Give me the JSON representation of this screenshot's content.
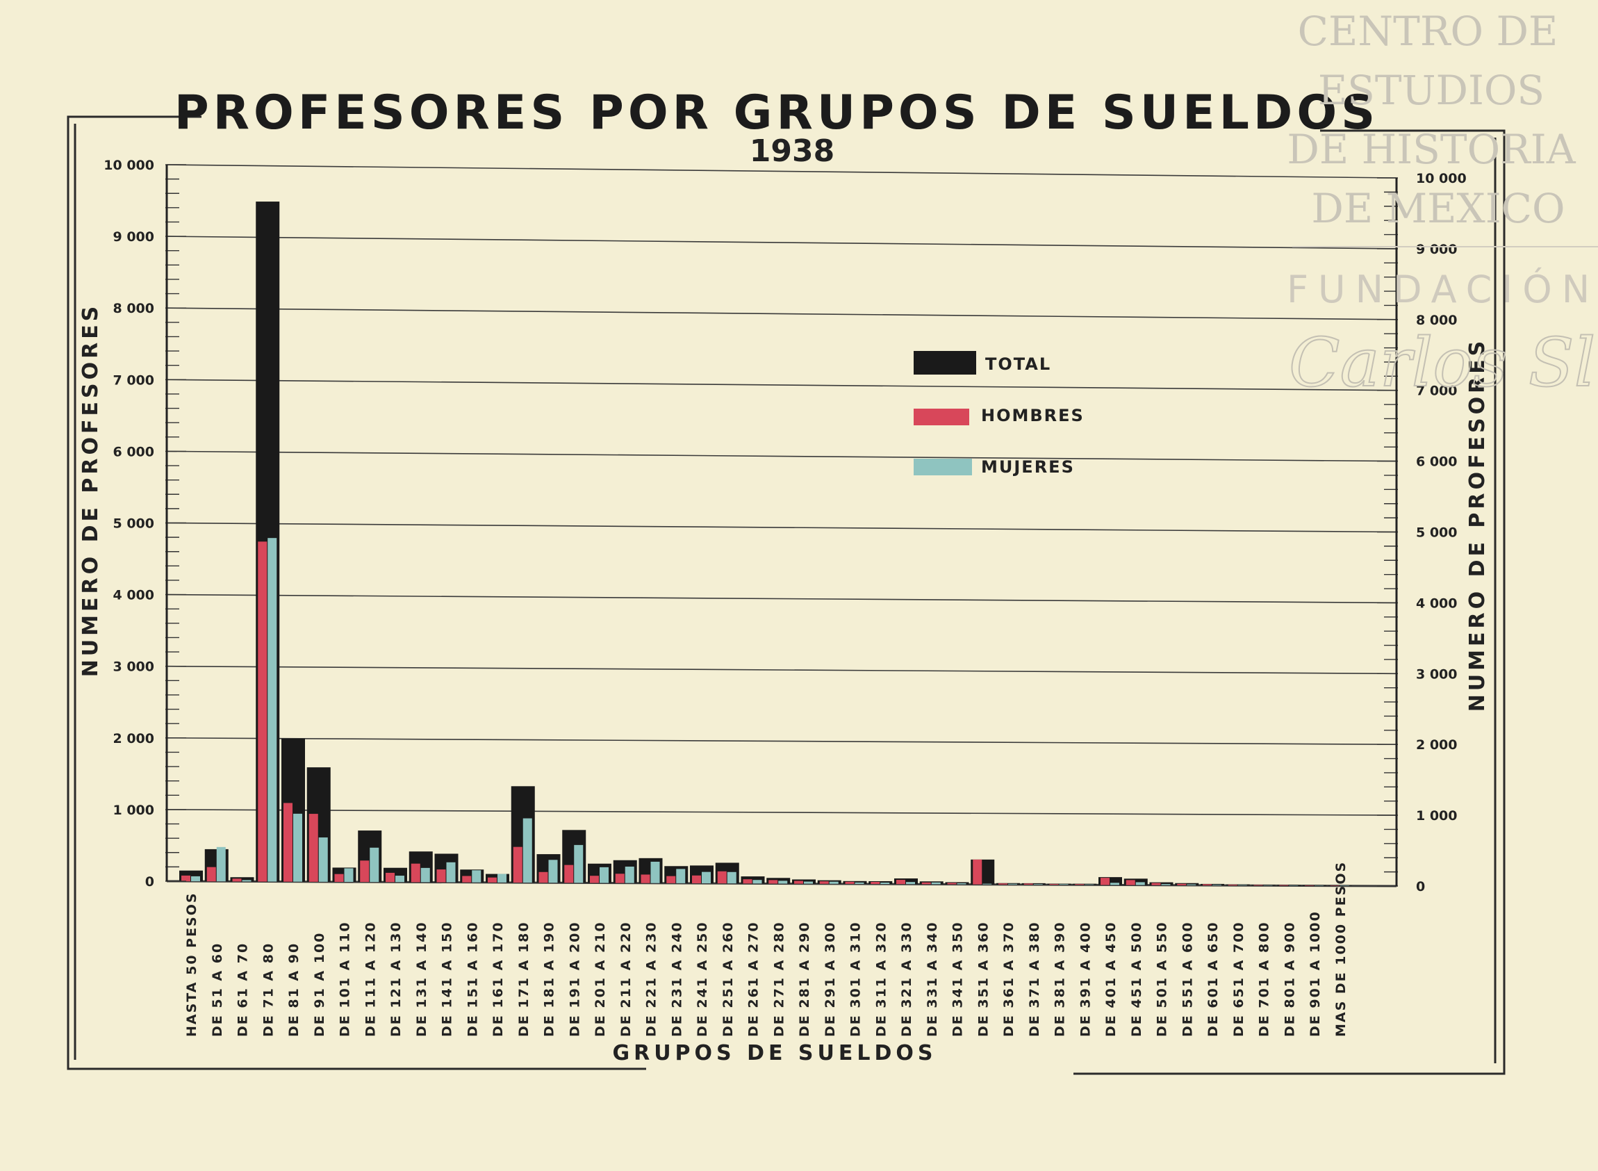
{
  "colors": {
    "background": "#f4efd4",
    "total": "#1a1a1a",
    "hombres": "#d8475a",
    "mujeres": "#8fc4c0",
    "ink": "#222222"
  },
  "watermark": {
    "lines": [
      "CENTRO DE",
      "ESTUDIOS",
      "DE HISTORIA",
      "DE MEXICO"
    ],
    "foundation": "FUNDACIÓN",
    "signature": "Carlos Slim"
  },
  "chart_data": {
    "type": "bar",
    "title": "PROFESORES POR GRUPOS DE SUELDOS",
    "subtitle": "1938",
    "xlabel": "GRUPOS DE SUELDOS",
    "ylabel": "NUMERO DE PROFESORES",
    "ylabel_right": "NUMERO DE PROFESORES",
    "ylim": [
      0,
      10000
    ],
    "yticks": [
      0,
      1000,
      2000,
      3000,
      4000,
      5000,
      6000,
      7000,
      8000,
      9000,
      10000
    ],
    "ytick_labels": [
      "0",
      "1 000",
      "2 000",
      "3 000",
      "4 000",
      "5 000",
      "6 000",
      "7 000",
      "8 000",
      "9 000",
      "10 000"
    ],
    "ytick_labels_right": [
      "0",
      "1 000",
      "2 000",
      "3 000",
      "4 000",
      "5 000",
      "6 000",
      "7 000",
      "8 000",
      "9 000",
      "10 000"
    ],
    "grid": true,
    "legend": {
      "position": "upper-center-right",
      "entries": [
        "TOTAL",
        "HOMBRES",
        "MUJERES"
      ]
    },
    "categories": [
      "HASTA 50 PESOS",
      "DE  51  A  60",
      "DE  61  A  70",
      "DE  71  A  80",
      "DE  81  A  90",
      "DE  91  A  100",
      "DE  101  A  110",
      "DE  111  A  120",
      "DE  121  A  130",
      "DE  131  A  140",
      "DE  141  A  150",
      "DE  151  A  160",
      "DE  161  A  170",
      "DE  171  A  180",
      "DE  181  A  190",
      "DE  191  A  200",
      "DE  201  A  210",
      "DE  211  A  220",
      "DE  221  A  230",
      "DE  231  A  240",
      "DE  241  A  250",
      "DE  251  A  260",
      "DE  261  A  270",
      "DE  271  A  280",
      "DE  281  A  290",
      "DE  291  A  300",
      "DE  301  A  310",
      "DE  311  A  320",
      "DE  321  A  330",
      "DE  331  A  340",
      "DE  341  A  350",
      "DE  351  A  360",
      "DE  361  A  370",
      "DE  371  A  380",
      "DE  381  A  390",
      "DE  391  A  400",
      "DE  401  A  450",
      "DE  451  A  500",
      "DE  501  A  550",
      "DE  551  A  600",
      "DE  601  A  650",
      "DE  651  A  700",
      "DE  701  A  800",
      "DE  801  A  900",
      "DE  901  A 1000",
      "MAS DE 1000 PESOS"
    ],
    "series": [
      {
        "name": "TOTAL",
        "values": [
          150,
          450,
          60,
          9500,
          2000,
          1600,
          200,
          720,
          200,
          430,
          400,
          180,
          120,
          1350,
          400,
          740,
          270,
          320,
          350,
          240,
          250,
          290,
          100,
          80,
          60,
          50,
          40,
          40,
          80,
          40,
          30,
          350,
          20,
          20,
          15,
          15,
          110,
          90,
          40,
          30,
          20,
          15,
          10,
          10,
          8,
          5
        ]
      },
      {
        "name": "HOMBRES",
        "values": [
          80,
          200,
          40,
          4750,
          1100,
          950,
          110,
          300,
          130,
          260,
          180,
          90,
          70,
          500,
          150,
          250,
          100,
          130,
          120,
          100,
          110,
          170,
          60,
          50,
          40,
          35,
          30,
          30,
          60,
          25,
          20,
          350,
          15,
          15,
          10,
          10,
          100,
          70,
          30,
          20,
          15,
          10,
          8,
          8,
          6,
          4
        ]
      },
      {
        "name": "MUJERES",
        "values": [
          70,
          480,
          20,
          4800,
          950,
          620,
          190,
          480,
          90,
          200,
          280,
          170,
          120,
          900,
          320,
          530,
          220,
          230,
          300,
          200,
          160,
          160,
          50,
          40,
          30,
          30,
          20,
          20,
          30,
          25,
          15,
          10,
          10,
          8,
          8,
          6,
          30,
          40,
          15,
          12,
          8,
          6,
          4,
          4,
          3,
          2
        ]
      }
    ]
  }
}
